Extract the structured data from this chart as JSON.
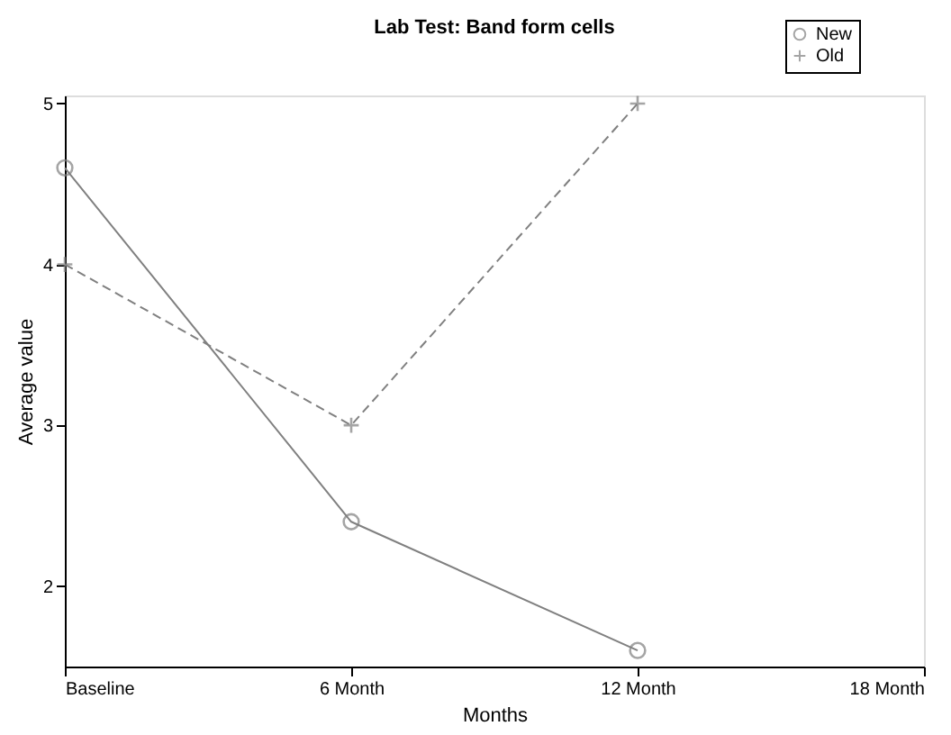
{
  "chart_data": {
    "type": "line",
    "title": "Lab Test: Band form cells",
    "xlabel": "Months",
    "ylabel": "Average value",
    "x": [
      0,
      6,
      12
    ],
    "xlim": [
      0,
      18
    ],
    "xticks": [
      {
        "value": 0,
        "label": "Baseline"
      },
      {
        "value": 6,
        "label": "6 Month"
      },
      {
        "value": 12,
        "label": "12 Month"
      },
      {
        "value": 18,
        "label": "18 Month"
      }
    ],
    "ylim": [
      1.5,
      5.05
    ],
    "yticks": [
      2,
      3,
      4,
      5
    ],
    "series": [
      {
        "name": "New",
        "color": "#808080",
        "values": [
          4.6,
          2.4,
          1.6
        ],
        "marker": "circle",
        "line_style": "solid"
      },
      {
        "name": "Old",
        "color": "#808080",
        "values": [
          4.0,
          3.0,
          5.0
        ],
        "marker": "cross",
        "line_style": "dashed"
      }
    ],
    "grid": false,
    "legend": "top right"
  }
}
